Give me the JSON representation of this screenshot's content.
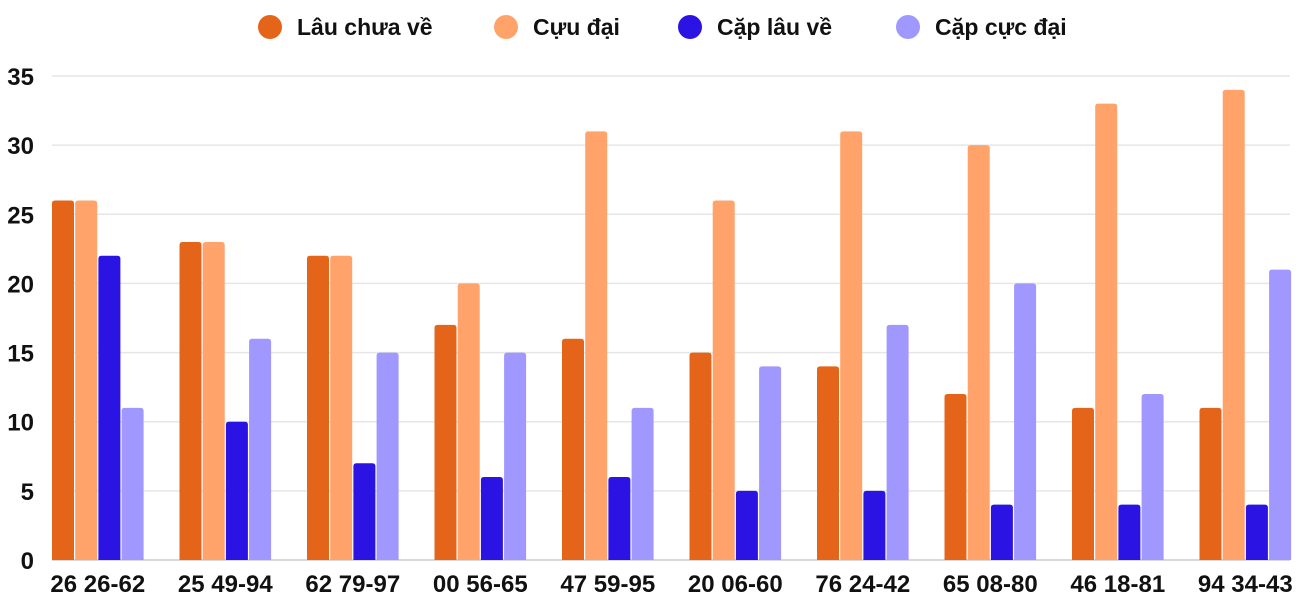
{
  "chart_data": {
    "type": "bar",
    "title": "",
    "xlabel": "",
    "ylabel": "",
    "ylim": [
      0,
      35
    ],
    "yticks": [
      0,
      5,
      10,
      15,
      20,
      25,
      30,
      35
    ],
    "grid": true,
    "legend_position": "top",
    "categories": [
      "26 26-62",
      "25 49-94",
      "62 79-97",
      "00 56-65",
      "47 59-95",
      "20 06-60",
      "76 24-42",
      "65 08-80",
      "46 18-81",
      "94 34-43"
    ],
    "series": [
      {
        "name": "Lâu chưa về",
        "color": "#E4641A",
        "values": [
          26,
          23,
          22,
          17,
          16,
          15,
          14,
          12,
          11,
          11
        ]
      },
      {
        "name": "Cựu đại",
        "color": "#FFA36B",
        "values": [
          26,
          23,
          22,
          20,
          31,
          26,
          31,
          30,
          33,
          34
        ]
      },
      {
        "name": "Cặp lâu về",
        "color": "#2A13E3",
        "values": [
          22,
          10,
          7,
          6,
          6,
          5,
          5,
          4,
          4,
          4
        ]
      },
      {
        "name": "Cặp cực đại",
        "color": "#A097FF",
        "values": [
          11,
          16,
          15,
          15,
          11,
          14,
          17,
          20,
          12,
          21
        ]
      }
    ]
  }
}
